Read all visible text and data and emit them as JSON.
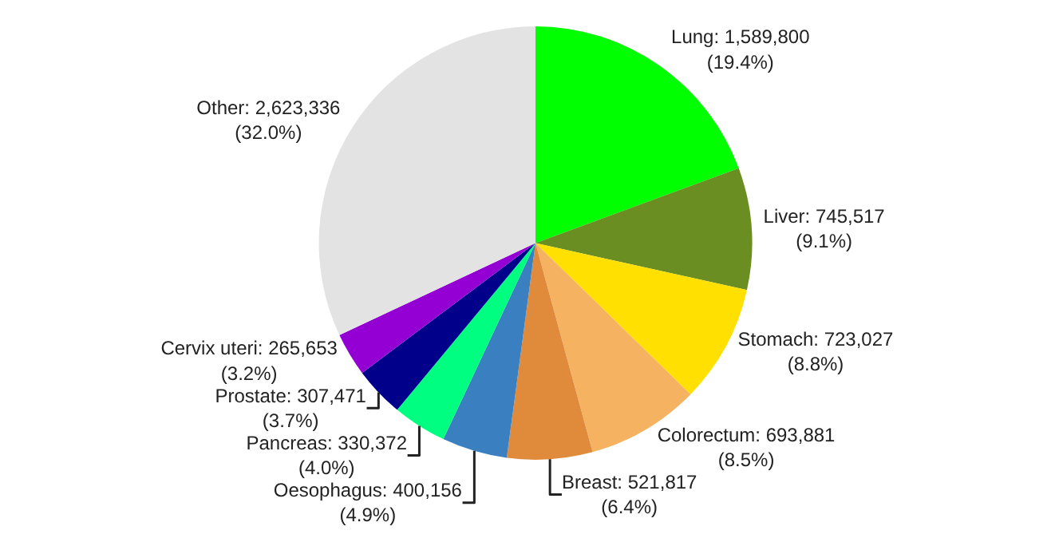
{
  "chart_data": {
    "type": "pie",
    "categories": [
      "Lung",
      "Liver",
      "Stomach",
      "Colorectum",
      "Breast",
      "Oesophagus",
      "Pancreas",
      "Prostate",
      "Cervix uteri",
      "Other"
    ],
    "values": [
      1589800,
      745517,
      723027,
      693881,
      521817,
      400156,
      330372,
      307471,
      265653,
      2623336
    ],
    "value_labels": [
      "1,589,800\n(19.4%)",
      "745,517\n(9.1%)",
      "723,027\n(8.8%)",
      "693,881\n(8.5%)",
      "521,817\n(6.4%)",
      "400,156\n(4.9%)",
      "330,372\n(4.0%)",
      "307,471\n(3.7%)",
      "265,653\n(3.2%)",
      "2,623,336\n(32.0%)"
    ],
    "colors": [
      "#00ff00",
      "#6b8e23",
      "#ffe000",
      "#f5b261",
      "#e08a3c",
      "#3a80c0",
      "#00ff80",
      "#00008b",
      "#9400d3",
      "#e3e3e3"
    ],
    "legend": false
  }
}
